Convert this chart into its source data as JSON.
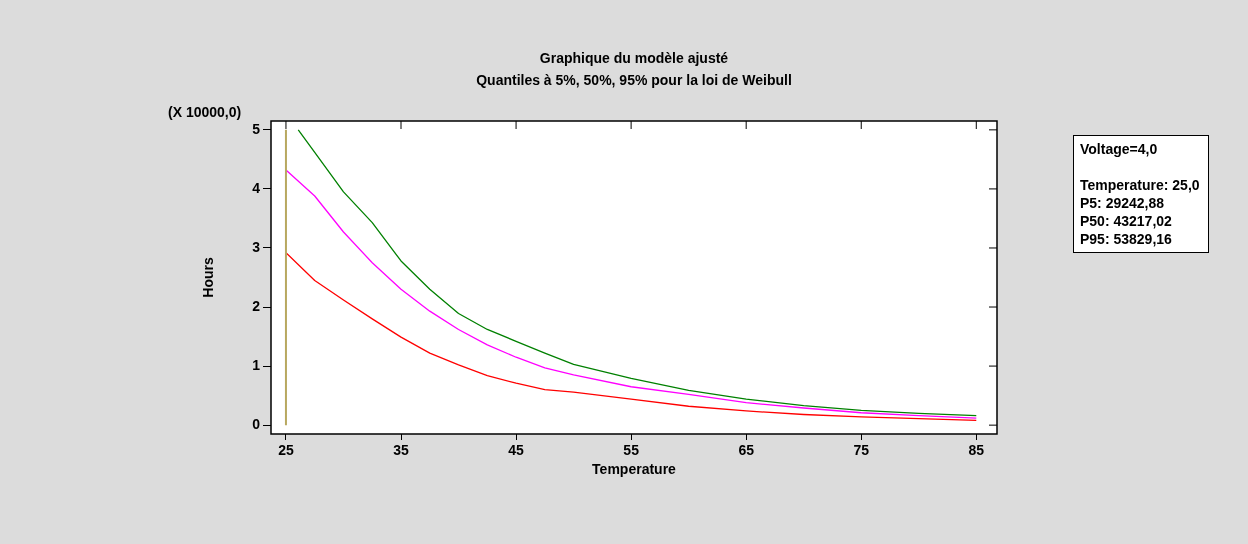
{
  "chart_data": {
    "type": "line",
    "title": "Graphique du modèle ajusté",
    "subtitle": "Quantiles à 5%,  50%,  95% pour la loi de Weibull",
    "xlabel": "Temperature",
    "ylabel": "Hours",
    "annotations": [
      "(X 10000,0)",
      "Voltage=4,0",
      "Temperature: 25,0",
      "P5: 29242,88",
      "P50: 43217,02",
      "P95: 53829,16"
    ],
    "x": [
      25,
      27.5,
      30,
      32.5,
      35,
      37.5,
      40,
      42.5,
      45,
      47.5,
      50,
      55,
      60,
      65,
      70,
      75,
      80,
      85
    ],
    "series": [
      {
        "color": "#ff0000",
        "values": [
          2.92,
          2.45,
          2.12,
          1.8,
          1.49,
          1.22,
          1.02,
          0.84,
          0.71,
          0.6,
          0.56,
          0.44,
          0.32,
          0.24,
          0.18,
          0.14,
          0.11,
          0.08
        ]
      },
      {
        "color": "#ff00ff",
        "values": [
          4.32,
          3.88,
          3.27,
          2.75,
          2.3,
          1.93,
          1.62,
          1.36,
          1.15,
          0.97,
          0.85,
          0.65,
          0.52,
          0.38,
          0.29,
          0.21,
          0.16,
          0.12
        ]
      },
      {
        "color": "#008000",
        "x": [
          26.07,
          27.5,
          30,
          32.5,
          35,
          37.5,
          40,
          42.5,
          45,
          47.5,
          50,
          55,
          60,
          65,
          70,
          75,
          80,
          85
        ],
        "values": [
          5,
          4.62,
          3.95,
          3.43,
          2.78,
          2.3,
          1.89,
          1.62,
          1.42,
          1.22,
          1.03,
          0.79,
          0.59,
          0.44,
          0.33,
          0.25,
          0.2,
          0.16
        ]
      }
    ],
    "ref_lines": [
      {
        "axis": "x",
        "value": 25,
        "color": "#b8a860"
      }
    ],
    "xlim": [
      23.7,
      86.8
    ],
    "xticks": [
      25,
      35,
      45,
      55,
      65,
      75,
      85
    ],
    "ylim": [
      -0.15,
      5.15
    ],
    "yticks": [
      0,
      1,
      2,
      3,
      4,
      5
    ],
    "legend": false,
    "marker": "none",
    "line_style": "solid"
  }
}
